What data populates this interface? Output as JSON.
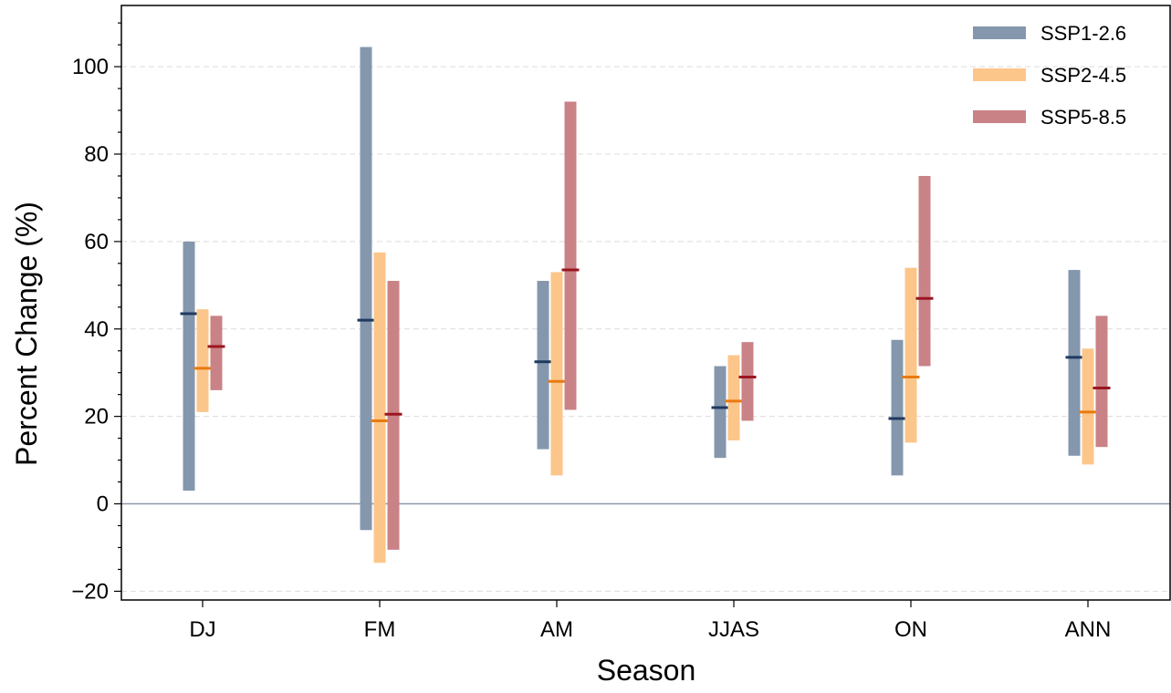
{
  "chart_data": {
    "type": "bar",
    "subtype": "range-bars-with-median",
    "xlabel": "Season",
    "ylabel": "Percent Change (%)",
    "ylim": [
      -22,
      114
    ],
    "yticks": [
      -20,
      0,
      20,
      40,
      60,
      80,
      100
    ],
    "ytick_labels": [
      "−20",
      "0",
      "20",
      "40",
      "60",
      "80",
      "100"
    ],
    "grid": "horizontal dashed",
    "zero_line": true,
    "legend_position": "top-right",
    "categories": [
      "DJ",
      "FM",
      "AM",
      "JJAS",
      "ON",
      "ANN"
    ],
    "series": [
      {
        "name": "SSP1-2.6",
        "bar_color": "#8497ad",
        "median_color": "#1f3a5f",
        "low": [
          3,
          -6,
          12.5,
          10.5,
          6.5,
          11
        ],
        "high": [
          60,
          104.5,
          51,
          31.5,
          37.5,
          53.5
        ],
        "median": [
          43.5,
          42,
          32.5,
          22,
          19.5,
          33.5
        ]
      },
      {
        "name": "SSP2-4.5",
        "bar_color": "#fcc68a",
        "median_color": "#e87a10",
        "low": [
          21,
          -13.5,
          6.5,
          14.5,
          14,
          9
        ],
        "high": [
          44.5,
          57.5,
          53,
          34,
          54,
          35.5
        ],
        "median": [
          31,
          19,
          28,
          23.5,
          29,
          21
        ]
      },
      {
        "name": "SSP5-8.5",
        "bar_color": "#c98286",
        "median_color": "#9a1620",
        "low": [
          26,
          -10.5,
          21.5,
          19,
          31.5,
          13
        ],
        "high": [
          43,
          51,
          92,
          37,
          75,
          43
        ],
        "median": [
          36,
          20.5,
          53.5,
          29,
          47,
          26.5
        ]
      }
    ]
  }
}
